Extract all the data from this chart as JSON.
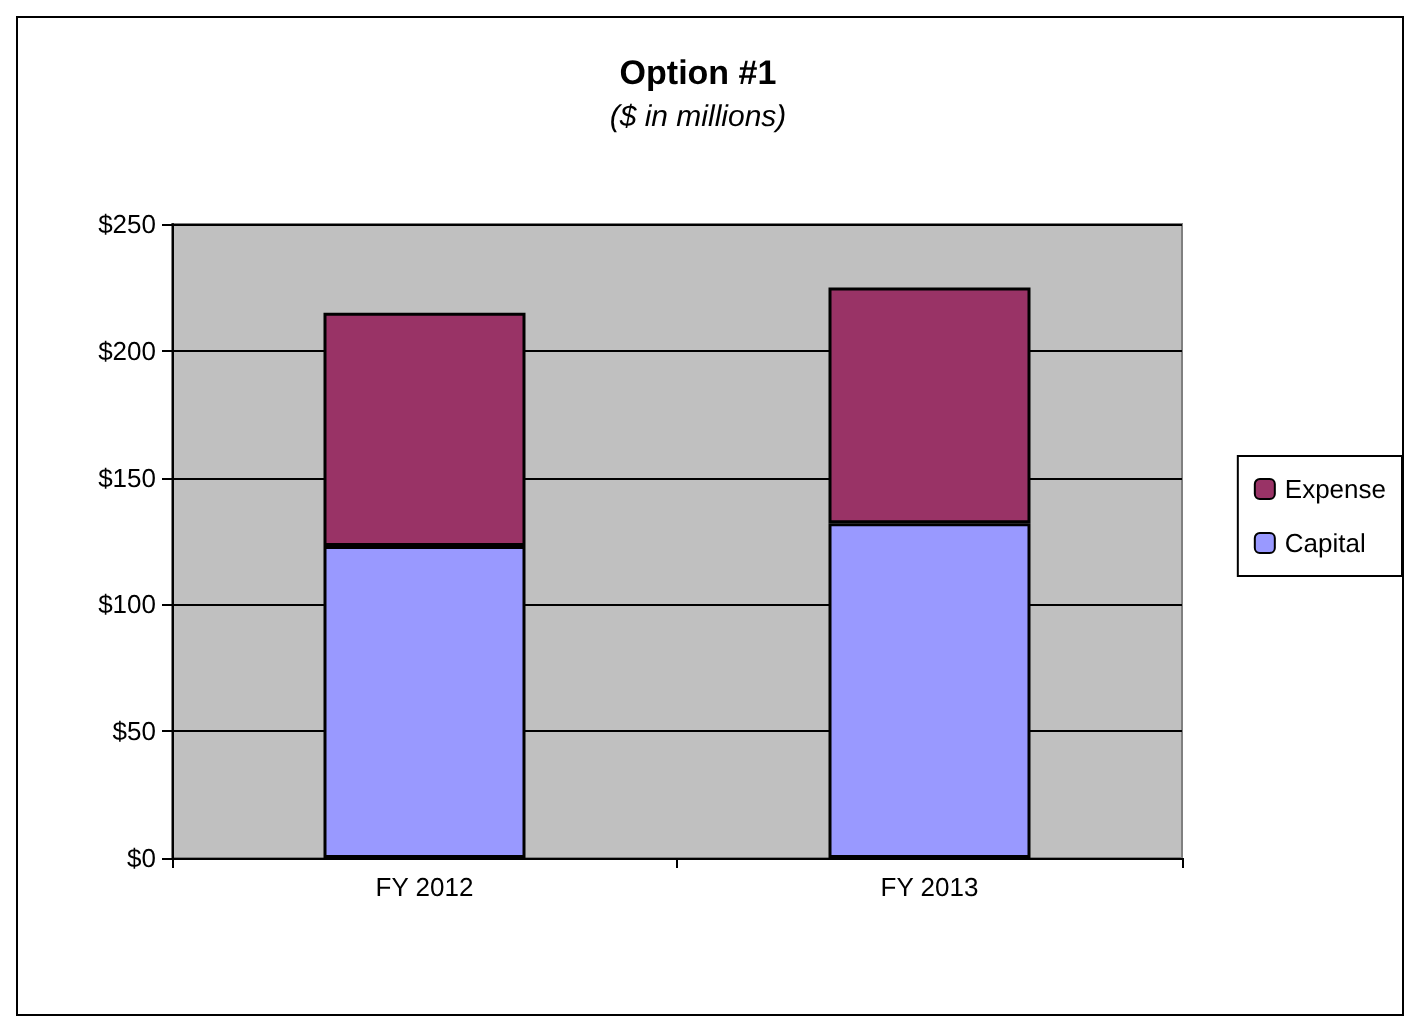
{
  "chart_data": {
    "type": "bar",
    "title": "Option #1",
    "subtitle": "($ in millions)",
    "categories": [
      "FY 2012",
      "FY 2013"
    ],
    "stacked": true,
    "series": [
      {
        "name": "Capital",
        "color": "#9999ff",
        "values": [
          123,
          132
        ]
      },
      {
        "name": "Expense",
        "color": "#993366",
        "values": [
          92,
          93
        ]
      }
    ],
    "ylim": [
      0,
      250
    ],
    "yticks": [
      {
        "value": 0,
        "label": "$0"
      },
      {
        "value": 50,
        "label": "$50"
      },
      {
        "value": 100,
        "label": "$100"
      },
      {
        "value": 150,
        "label": "$150"
      },
      {
        "value": 200,
        "label": "$200"
      },
      {
        "value": 250,
        "label": "$250"
      }
    ],
    "grid": "y",
    "legend": "right"
  }
}
